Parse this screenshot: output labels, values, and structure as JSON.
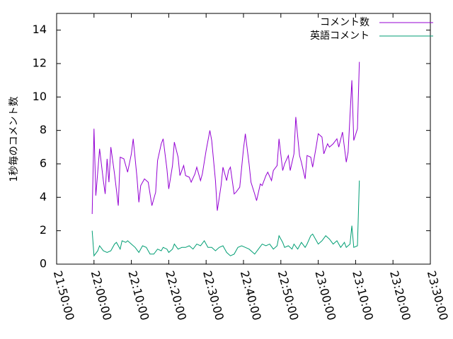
{
  "chart_data": {
    "type": "line",
    "ylabel": "1秒毎のコメント数",
    "xlabel": "",
    "ylim": [
      0,
      15
    ],
    "xlim": [
      "21:50:00",
      "23:30:00"
    ],
    "y_ticks": [
      0,
      2,
      4,
      6,
      8,
      10,
      12,
      14
    ],
    "x_ticks": [
      "21:50:00",
      "22:00:00",
      "22:10:00",
      "22:20:00",
      "22:30:00",
      "22:40:00",
      "22:50:00",
      "23:00:00",
      "23:10:00",
      "23:20:00",
      "23:30:00"
    ],
    "grid": false,
    "legend_position": "top-right",
    "series": [
      {
        "name": "コメント数",
        "color": "#9400d3",
        "points": [
          [
            "21:59:30",
            3.0
          ],
          [
            "22:00:00",
            8.1
          ],
          [
            "22:00:30",
            4.1
          ],
          [
            "22:01:30",
            6.9
          ],
          [
            "22:02:30",
            5.0
          ],
          [
            "22:03:00",
            4.2
          ],
          [
            "22:03:30",
            6.3
          ],
          [
            "22:04:00",
            4.9
          ],
          [
            "22:04:30",
            7.0
          ],
          [
            "22:05:30",
            5.4
          ],
          [
            "22:06:30",
            3.5
          ],
          [
            "22:07:00",
            6.4
          ],
          [
            "22:08:00",
            6.3
          ],
          [
            "22:09:00",
            5.5
          ],
          [
            "22:10:00",
            6.6
          ],
          [
            "22:10:30",
            7.5
          ],
          [
            "22:11:30",
            5.2
          ],
          [
            "22:12:00",
            3.7
          ],
          [
            "22:12:30",
            4.7
          ],
          [
            "22:13:30",
            5.1
          ],
          [
            "22:14:30",
            4.9
          ],
          [
            "22:15:30",
            3.5
          ],
          [
            "22:16:30",
            4.3
          ],
          [
            "22:17:00",
            6.2
          ],
          [
            "22:18:00",
            7.2
          ],
          [
            "22:18:30",
            7.5
          ],
          [
            "22:19:30",
            5.7
          ],
          [
            "22:20:00",
            4.5
          ],
          [
            "22:21:00",
            5.9
          ],
          [
            "22:21:30",
            7.3
          ],
          [
            "22:22:30",
            6.4
          ],
          [
            "22:23:00",
            5.3
          ],
          [
            "22:24:00",
            5.9
          ],
          [
            "22:24:30",
            5.3
          ],
          [
            "22:25:30",
            5.2
          ],
          [
            "22:26:00",
            4.9
          ],
          [
            "22:27:00",
            5.4
          ],
          [
            "22:27:30",
            5.8
          ],
          [
            "22:28:30",
            5.0
          ],
          [
            "22:29:00",
            5.4
          ],
          [
            "22:30:00",
            6.8
          ],
          [
            "22:31:00",
            8.0
          ],
          [
            "22:31:30",
            7.4
          ],
          [
            "22:32:30",
            5.0
          ],
          [
            "22:33:00",
            3.2
          ],
          [
            "22:34:00",
            4.7
          ],
          [
            "22:34:30",
            5.8
          ],
          [
            "22:35:30",
            5.0
          ],
          [
            "22:36:00",
            5.6
          ],
          [
            "22:36:30",
            5.8
          ],
          [
            "22:37:30",
            4.2
          ],
          [
            "22:38:00",
            4.3
          ],
          [
            "22:39:00",
            4.6
          ],
          [
            "22:40:00",
            6.9
          ],
          [
            "22:40:30",
            7.8
          ],
          [
            "22:41:30",
            6.0
          ],
          [
            "22:42:00",
            4.9
          ],
          [
            "22:43:00",
            4.2
          ],
          [
            "22:43:30",
            3.8
          ],
          [
            "22:44:30",
            4.8
          ],
          [
            "22:45:00",
            4.7
          ],
          [
            "22:46:00",
            5.3
          ],
          [
            "22:46:30",
            5.5
          ],
          [
            "22:47:30",
            5.0
          ],
          [
            "22:48:00",
            5.6
          ],
          [
            "22:49:00",
            5.9
          ],
          [
            "22:49:30",
            7.5
          ],
          [
            "22:50:30",
            5.6
          ],
          [
            "22:51:00",
            6.0
          ],
          [
            "22:52:00",
            6.5
          ],
          [
            "22:52:30",
            5.6
          ],
          [
            "22:53:30",
            6.6
          ],
          [
            "22:54:00",
            8.8
          ],
          [
            "22:55:00",
            6.5
          ],
          [
            "22:55:30",
            6.1
          ],
          [
            "22:56:30",
            5.1
          ],
          [
            "22:57:00",
            6.5
          ],
          [
            "22:58:00",
            6.4
          ],
          [
            "22:58:30",
            5.8
          ],
          [
            "22:59:30",
            7.1
          ],
          [
            "23:00:00",
            7.8
          ],
          [
            "23:01:00",
            7.6
          ],
          [
            "23:01:30",
            6.6
          ],
          [
            "23:02:30",
            7.2
          ],
          [
            "23:03:00",
            7.0
          ],
          [
            "23:04:00",
            7.2
          ],
          [
            "23:05:00",
            7.5
          ],
          [
            "23:05:30",
            7.0
          ],
          [
            "23:06:30",
            7.9
          ],
          [
            "23:07:30",
            6.1
          ],
          [
            "23:08:00",
            6.7
          ],
          [
            "23:09:00",
            11.0
          ],
          [
            "23:09:30",
            7.4
          ],
          [
            "23:10:30",
            8.1
          ],
          [
            "23:11:00",
            12.1
          ]
        ]
      },
      {
        "name": "英語コメント",
        "color": "#009e73",
        "points": [
          [
            "21:59:30",
            2.0
          ],
          [
            "22:00:00",
            0.5
          ],
          [
            "22:01:00",
            0.8
          ],
          [
            "22:01:30",
            1.1
          ],
          [
            "22:02:30",
            0.8
          ],
          [
            "22:03:30",
            0.7
          ],
          [
            "22:04:30",
            0.8
          ],
          [
            "22:05:30",
            1.2
          ],
          [
            "22:06:00",
            1.3
          ],
          [
            "22:07:00",
            0.9
          ],
          [
            "22:07:30",
            1.4
          ],
          [
            "22:08:30",
            1.3
          ],
          [
            "22:09:00",
            1.4
          ],
          [
            "22:10:00",
            1.2
          ],
          [
            "22:11:00",
            1.0
          ],
          [
            "22:12:00",
            0.7
          ],
          [
            "22:13:00",
            1.1
          ],
          [
            "22:14:00",
            1.0
          ],
          [
            "22:15:00",
            0.6
          ],
          [
            "22:16:00",
            0.6
          ],
          [
            "22:17:00",
            0.9
          ],
          [
            "22:18:00",
            0.8
          ],
          [
            "22:18:30",
            1.0
          ],
          [
            "22:19:30",
            0.9
          ],
          [
            "22:20:00",
            0.7
          ],
          [
            "22:21:00",
            0.9
          ],
          [
            "22:21:30",
            1.2
          ],
          [
            "22:22:30",
            0.9
          ],
          [
            "22:23:30",
            1.0
          ],
          [
            "22:24:30",
            1.0
          ],
          [
            "22:25:30",
            1.1
          ],
          [
            "22:26:30",
            0.9
          ],
          [
            "22:27:30",
            1.2
          ],
          [
            "22:28:30",
            1.1
          ],
          [
            "22:29:30",
            1.4
          ],
          [
            "22:30:30",
            1.0
          ],
          [
            "22:31:30",
            1.0
          ],
          [
            "22:32:30",
            0.8
          ],
          [
            "22:33:30",
            1.0
          ],
          [
            "22:34:30",
            1.1
          ],
          [
            "22:35:30",
            0.7
          ],
          [
            "22:36:30",
            0.5
          ],
          [
            "22:37:30",
            0.6
          ],
          [
            "22:38:30",
            1.0
          ],
          [
            "22:39:30",
            1.1
          ],
          [
            "22:40:30",
            1.0
          ],
          [
            "22:41:30",
            0.9
          ],
          [
            "22:42:30",
            0.7
          ],
          [
            "22:43:00",
            0.6
          ],
          [
            "22:44:00",
            0.9
          ],
          [
            "22:45:00",
            1.2
          ],
          [
            "22:46:00",
            1.1
          ],
          [
            "22:47:00",
            1.2
          ],
          [
            "22:48:00",
            0.9
          ],
          [
            "22:49:00",
            1.1
          ],
          [
            "22:49:30",
            1.7
          ],
          [
            "22:50:30",
            1.3
          ],
          [
            "22:51:00",
            1.0
          ],
          [
            "22:52:00",
            1.1
          ],
          [
            "22:53:00",
            0.9
          ],
          [
            "22:53:30",
            1.2
          ],
          [
            "22:54:30",
            0.9
          ],
          [
            "22:55:30",
            1.3
          ],
          [
            "22:56:30",
            1.0
          ],
          [
            "22:57:00",
            1.2
          ],
          [
            "22:58:00",
            1.7
          ],
          [
            "22:58:30",
            1.8
          ],
          [
            "22:59:30",
            1.4
          ],
          [
            "23:00:00",
            1.2
          ],
          [
            "23:01:00",
            1.4
          ],
          [
            "23:02:00",
            1.7
          ],
          [
            "23:03:00",
            1.5
          ],
          [
            "23:04:00",
            1.2
          ],
          [
            "23:05:00",
            1.4
          ],
          [
            "23:06:00",
            1.0
          ],
          [
            "23:07:00",
            1.3
          ],
          [
            "23:07:30",
            1.0
          ],
          [
            "23:08:30",
            1.2
          ],
          [
            "23:09:00",
            2.3
          ],
          [
            "23:09:30",
            1.0
          ],
          [
            "23:10:30",
            1.1
          ],
          [
            "23:11:00",
            5.0
          ]
        ]
      }
    ]
  }
}
